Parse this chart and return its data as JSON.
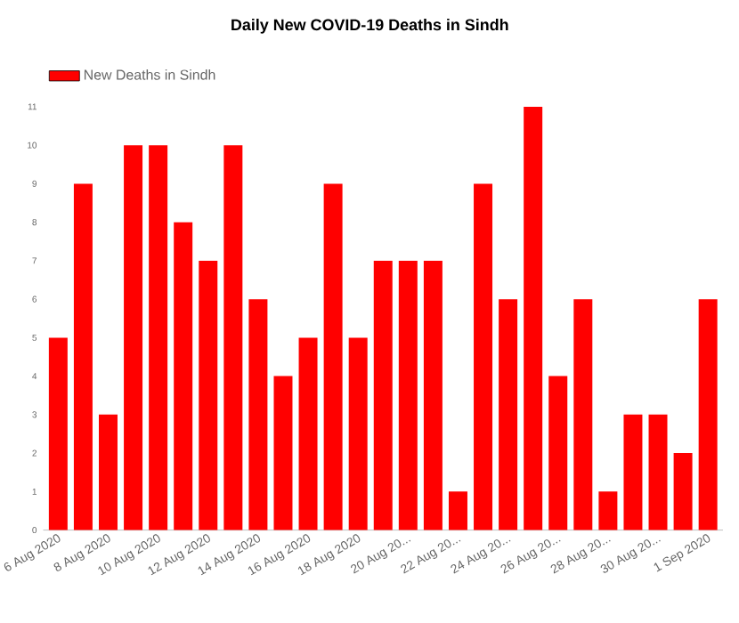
{
  "chart_data": {
    "type": "bar",
    "title": "Daily New COVID-19 Deaths in Sindh",
    "categories": [
      "6 Aug 2020",
      null,
      "8 Aug 2020",
      null,
      "10 Aug 2020",
      null,
      "12 Aug 2020",
      null,
      "14 Aug 2020",
      null,
      "16 Aug 2020",
      null,
      "18 Aug 2020",
      null,
      "20 Aug 20...",
      null,
      "22 Aug 20...",
      null,
      "24 Aug 20...",
      null,
      "26 Aug 20...",
      null,
      "28 Aug 20...",
      null,
      "30 Aug 20...",
      null,
      "1 Sep 2020"
    ],
    "series": [
      {
        "name": "New Deaths in Sindh",
        "color": "#ff0000",
        "values": [
          5,
          9,
          3,
          10,
          10,
          8,
          7,
          10,
          6,
          4,
          5,
          9,
          5,
          7,
          7,
          7,
          1,
          9,
          6,
          11,
          4,
          6,
          1,
          3,
          3,
          2,
          6
        ]
      }
    ],
    "ylim": [
      0,
      11
    ],
    "yticks": [
      0,
      1,
      2,
      3,
      4,
      5,
      6,
      7,
      8,
      9,
      10,
      11
    ],
    "grid": false,
    "legend": "top left"
  }
}
